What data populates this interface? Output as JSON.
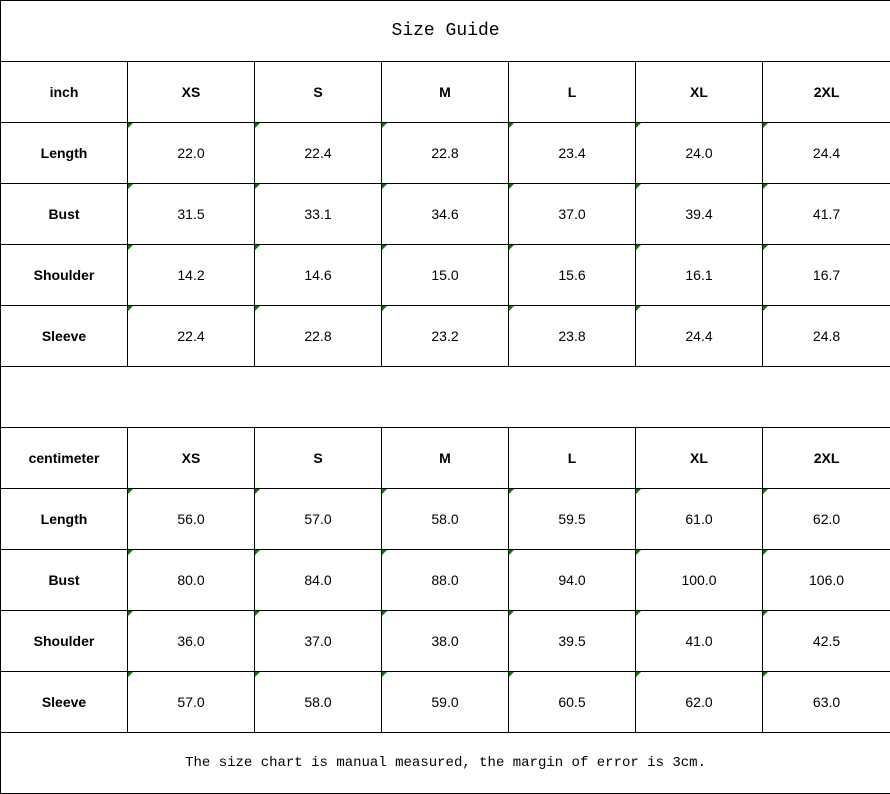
{
  "title": "Size Guide",
  "sizes": [
    "XS",
    "S",
    "M",
    "L",
    "XL",
    "2XL"
  ],
  "inch": {
    "unit": "inch",
    "rows": [
      {
        "label": "Length",
        "values": [
          "22.0",
          "22.4",
          "22.8",
          "23.4",
          "24.0",
          "24.4"
        ]
      },
      {
        "label": "Bust",
        "values": [
          "31.5",
          "33.1",
          "34.6",
          "37.0",
          "39.4",
          "41.7"
        ]
      },
      {
        "label": "Shoulder",
        "values": [
          "14.2",
          "14.6",
          "15.0",
          "15.6",
          "16.1",
          "16.7"
        ]
      },
      {
        "label": "Sleeve",
        "values": [
          "22.4",
          "22.8",
          "23.2",
          "23.8",
          "24.4",
          "24.8"
        ]
      }
    ]
  },
  "cm": {
    "unit": "centimeter",
    "rows": [
      {
        "label": "Length",
        "values": [
          "56.0",
          "57.0",
          "58.0",
          "59.5",
          "61.0",
          "62.0"
        ]
      },
      {
        "label": "Bust",
        "values": [
          "80.0",
          "84.0",
          "88.0",
          "94.0",
          "100.0",
          "106.0"
        ]
      },
      {
        "label": "Shoulder",
        "values": [
          "36.0",
          "37.0",
          "38.0",
          "39.5",
          "41.0",
          "42.5"
        ]
      },
      {
        "label": "Sleeve",
        "values": [
          "57.0",
          "58.0",
          "59.0",
          "60.5",
          "62.0",
          "63.0"
        ]
      }
    ]
  },
  "note": "The size chart is manual measured, the margin of error is 3cm."
}
